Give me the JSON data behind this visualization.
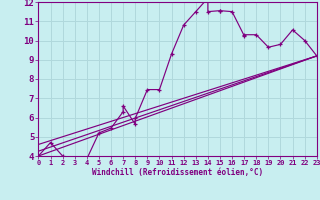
{
  "xlabel": "Windchill (Refroidissement éolien,°C)",
  "bg_color": "#c8eef0",
  "line_color": "#800080",
  "grid_color": "#b0d8dc",
  "xmin": 0,
  "xmax": 23,
  "ymin": 4,
  "ymax": 12,
  "xticks": [
    0,
    1,
    2,
    3,
    4,
    5,
    6,
    7,
    8,
    9,
    10,
    11,
    12,
    13,
    14,
    15,
    16,
    17,
    18,
    19,
    20,
    21,
    22,
    23
  ],
  "yticks": [
    4,
    5,
    6,
    7,
    8,
    9,
    10,
    11,
    12
  ],
  "curve1_x": [
    0,
    1,
    2,
    3,
    4,
    4,
    5,
    6,
    7,
    7,
    8,
    8,
    9,
    10,
    11,
    12,
    13,
    14,
    14,
    15,
    15,
    16,
    17,
    17,
    18,
    19,
    20,
    21,
    22,
    23
  ],
  "curve1_y": [
    4.0,
    4.7,
    4.0,
    3.8,
    3.75,
    3.85,
    5.2,
    5.45,
    6.3,
    6.6,
    5.65,
    5.95,
    7.45,
    7.45,
    9.3,
    10.8,
    11.5,
    12.2,
    11.5,
    11.55,
    11.55,
    11.5,
    10.25,
    10.3,
    10.3,
    9.65,
    9.8,
    10.55,
    10.0,
    9.2
  ],
  "line1_x": [
    0,
    23
  ],
  "line1_y": [
    4.25,
    9.2
  ],
  "line2_x": [
    0,
    23
  ],
  "line2_y": [
    4.6,
    9.2
  ],
  "line3_x": [
    0,
    23
  ],
  "line3_y": [
    4.0,
    9.2
  ]
}
